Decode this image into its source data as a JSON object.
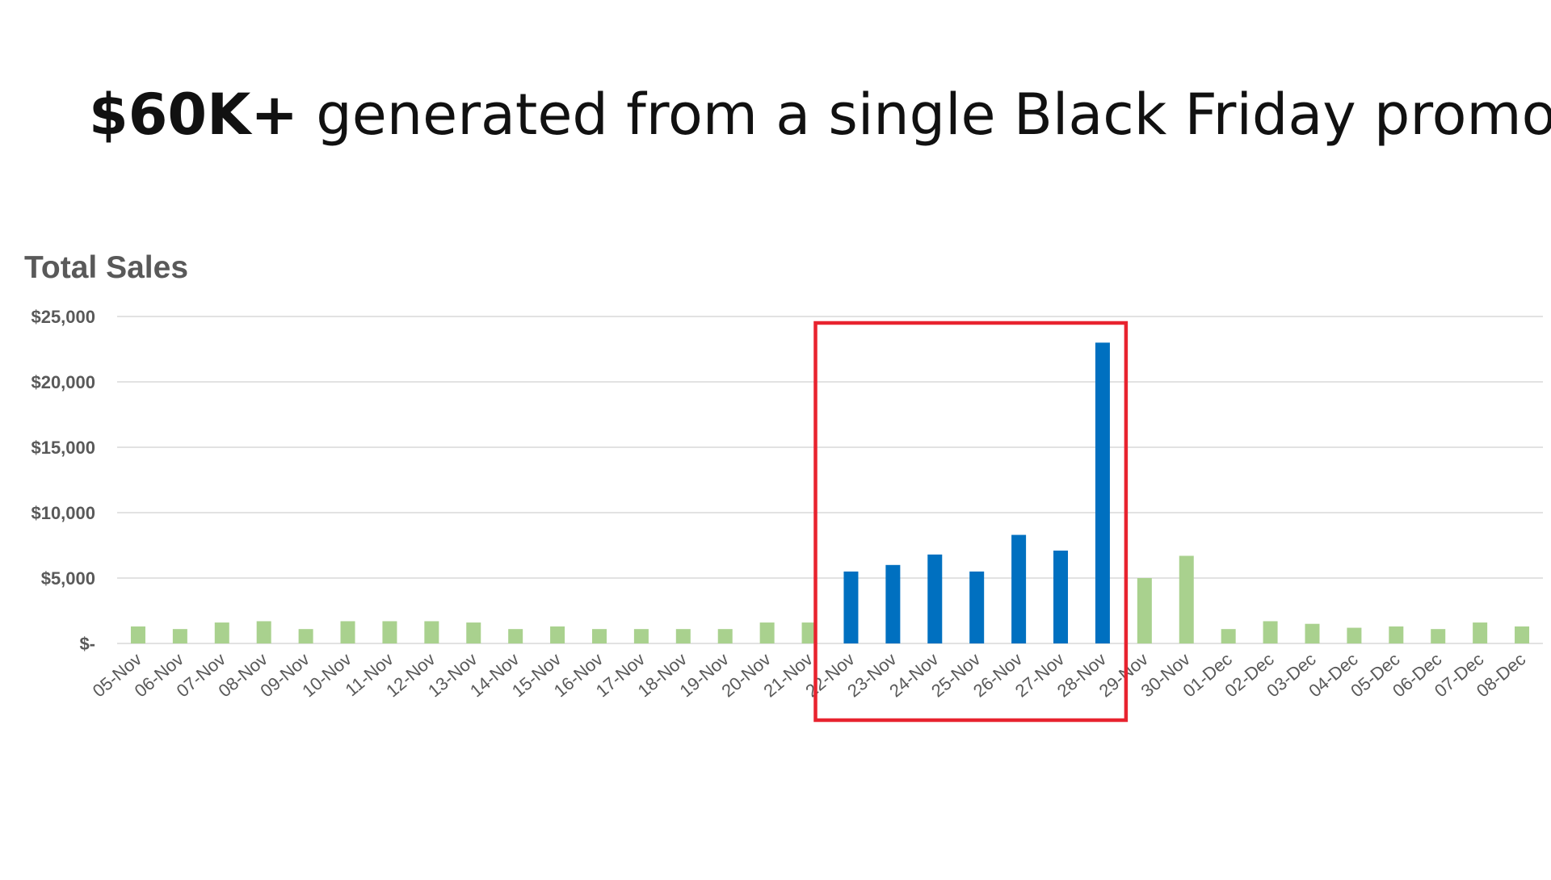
{
  "headline": {
    "bold": "$60K+",
    "rest": "generated from a single Black Friday promo"
  },
  "colors": {
    "normal_bar": "#a9d18e",
    "promo_bar": "#0070c0",
    "highlight_box": "#e8232f",
    "grid": "#d9d9d9",
    "text": "#595959"
  },
  "chart_data": {
    "type": "bar",
    "title": "Total Sales",
    "ylim": [
      0,
      25000
    ],
    "yticks": [
      0,
      5000,
      10000,
      15000,
      20000,
      25000
    ],
    "ytick_labels": [
      "$-",
      "$5,000",
      "$10,000",
      "$15,000",
      "$20,000",
      "$25,000"
    ],
    "grid": true,
    "categories": [
      "05-Nov",
      "06-Nov",
      "07-Nov",
      "08-Nov",
      "09-Nov",
      "10-Nov",
      "11-Nov",
      "12-Nov",
      "13-Nov",
      "14-Nov",
      "15-Nov",
      "16-Nov",
      "17-Nov",
      "18-Nov",
      "19-Nov",
      "20-Nov",
      "21-Nov",
      "22-Nov",
      "23-Nov",
      "24-Nov",
      "25-Nov",
      "26-Nov",
      "27-Nov",
      "28-Nov",
      "29-Nov",
      "30-Nov",
      "01-Dec",
      "02-Dec",
      "03-Dec",
      "04-Dec",
      "05-Dec",
      "06-Dec",
      "07-Dec",
      "08-Dec"
    ],
    "values": [
      1300,
      1100,
      1600,
      1700,
      1100,
      1700,
      1700,
      1700,
      1600,
      1100,
      1300,
      1100,
      1100,
      1100,
      1100,
      1600,
      1600,
      5500,
      6000,
      6800,
      5500,
      8300,
      7100,
      23000,
      5000,
      6700,
      1100,
      1700,
      1500,
      1200,
      1300,
      1100,
      1600,
      1300
    ],
    "highlighted_range": [
      "22-Nov",
      "28-Nov"
    ]
  }
}
